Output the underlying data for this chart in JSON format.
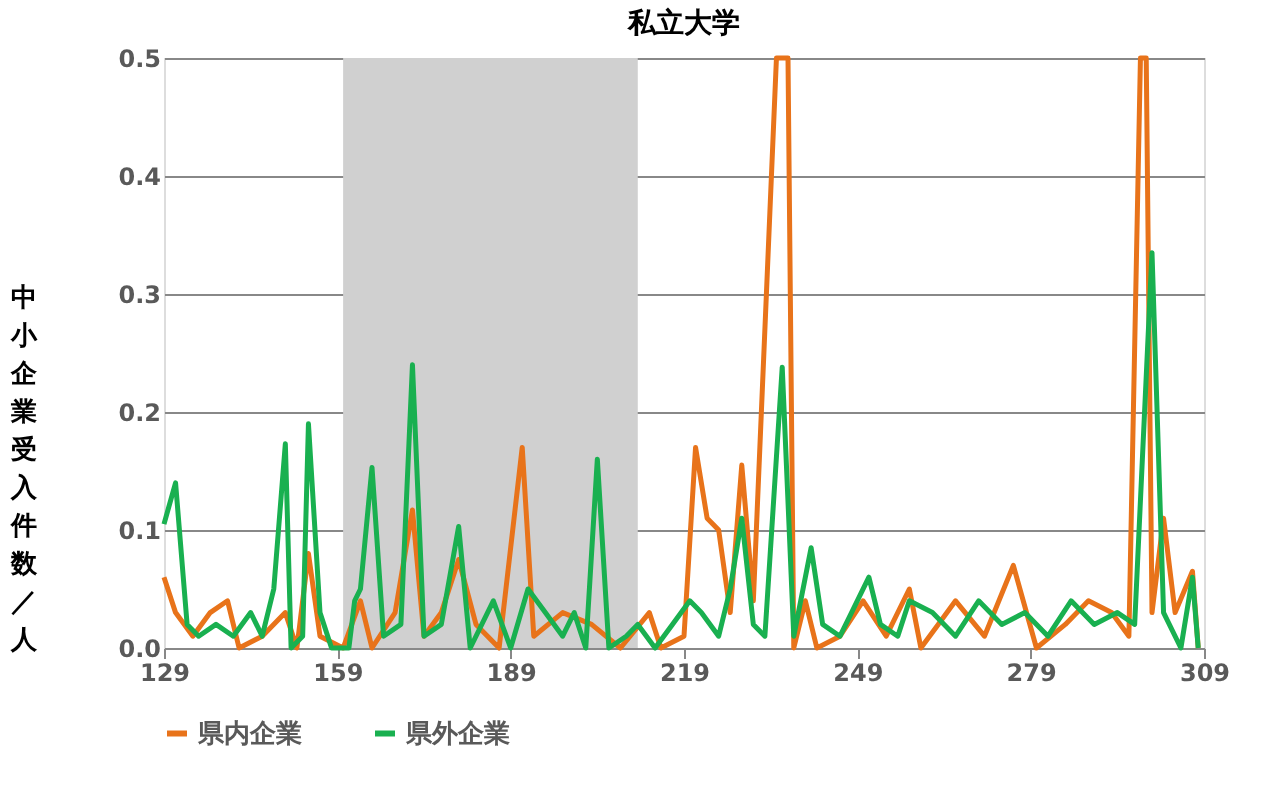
{
  "chart_data": {
    "type": "line",
    "title": "私立大学",
    "ylabel": "中小企業受入件数／人",
    "xlim": [
      129,
      309
    ],
    "xticks": [
      129,
      159,
      189,
      219,
      249,
      279,
      309
    ],
    "ylim": [
      0,
      0.5
    ],
    "yticks": [
      {
        "value": 0,
        "label": "0.0"
      },
      0.1,
      0.2,
      0.3,
      0.4,
      0.5
    ],
    "grid": "y",
    "legend": "bottom",
    "line_style": "solid",
    "marker": "none",
    "bands": [
      {
        "axis": "x",
        "from": 160,
        "to": 211,
        "color": "#d0d0d0"
      }
    ],
    "series": [
      {
        "name": "県内企業",
        "color": "#e8731a",
        "x": [
          129,
          131,
          134,
          137,
          140,
          142,
          146,
          150,
          152,
          154,
          156,
          160,
          163,
          165,
          169,
          172,
          174,
          177,
          180,
          183,
          187,
          191,
          193,
          198,
          203,
          208,
          213,
          215,
          219,
          221,
          223,
          225,
          227,
          229,
          231,
          235,
          237,
          238,
          240,
          242,
          246,
          250,
          254,
          258,
          260,
          263,
          266,
          271,
          276,
          280,
          285,
          289,
          293,
          296,
          298,
          299,
          300,
          302,
          304,
          307,
          308
        ],
        "values": [
          0.06,
          0.03,
          0.01,
          0.03,
          0.04,
          0.0,
          0.01,
          0.03,
          0.0,
          0.08,
          0.01,
          0.0,
          0.04,
          0.0,
          0.03,
          0.117,
          0.01,
          0.03,
          0.075,
          0.02,
          0.0,
          0.17,
          0.01,
          0.03,
          0.02,
          0.0,
          0.03,
          0.0,
          0.01,
          0.17,
          0.11,
          0.1,
          0.03,
          0.155,
          0.04,
          0.5,
          0.5,
          0.0,
          0.04,
          0.0,
          0.01,
          0.04,
          0.01,
          0.05,
          0.0,
          0.02,
          0.04,
          0.01,
          0.07,
          0.0,
          0.02,
          0.04,
          0.03,
          0.01,
          0.5,
          0.5,
          0.03,
          0.11,
          0.03,
          0.065,
          0.0
        ]
      },
      {
        "name": "県外企業",
        "color": "#19b050",
        "x": [
          129,
          131,
          133,
          135,
          138,
          141,
          144,
          146,
          148,
          150,
          151,
          153,
          154,
          156,
          158,
          161,
          162,
          163,
          165,
          167,
          170,
          172,
          174,
          177,
          180,
          182,
          186,
          189,
          192,
          195,
          198,
          200,
          202,
          204,
          206,
          209,
          211,
          214,
          217,
          220,
          222,
          225,
          227,
          229,
          231,
          233,
          236,
          238,
          241,
          243,
          246,
          248,
          251,
          253,
          256,
          258,
          262,
          266,
          270,
          274,
          278,
          282,
          286,
          290,
          294,
          297,
          300,
          302,
          305,
          307,
          308
        ],
        "values": [
          0.105,
          0.14,
          0.02,
          0.01,
          0.02,
          0.01,
          0.03,
          0.01,
          0.05,
          0.173,
          0.0,
          0.01,
          0.19,
          0.03,
          0.0,
          0.0,
          0.04,
          0.05,
          0.153,
          0.01,
          0.02,
          0.24,
          0.01,
          0.02,
          0.103,
          0.0,
          0.04,
          0.0,
          0.05,
          0.03,
          0.01,
          0.03,
          0.0,
          0.16,
          0.0,
          0.01,
          0.02,
          0.0,
          0.02,
          0.04,
          0.03,
          0.01,
          0.05,
          0.11,
          0.02,
          0.01,
          0.238,
          0.01,
          0.085,
          0.02,
          0.01,
          0.03,
          0.06,
          0.02,
          0.01,
          0.04,
          0.03,
          0.01,
          0.04,
          0.02,
          0.03,
          0.01,
          0.04,
          0.02,
          0.03,
          0.02,
          0.335,
          0.03,
          0.0,
          0.06,
          0.0
        ]
      }
    ]
  }
}
